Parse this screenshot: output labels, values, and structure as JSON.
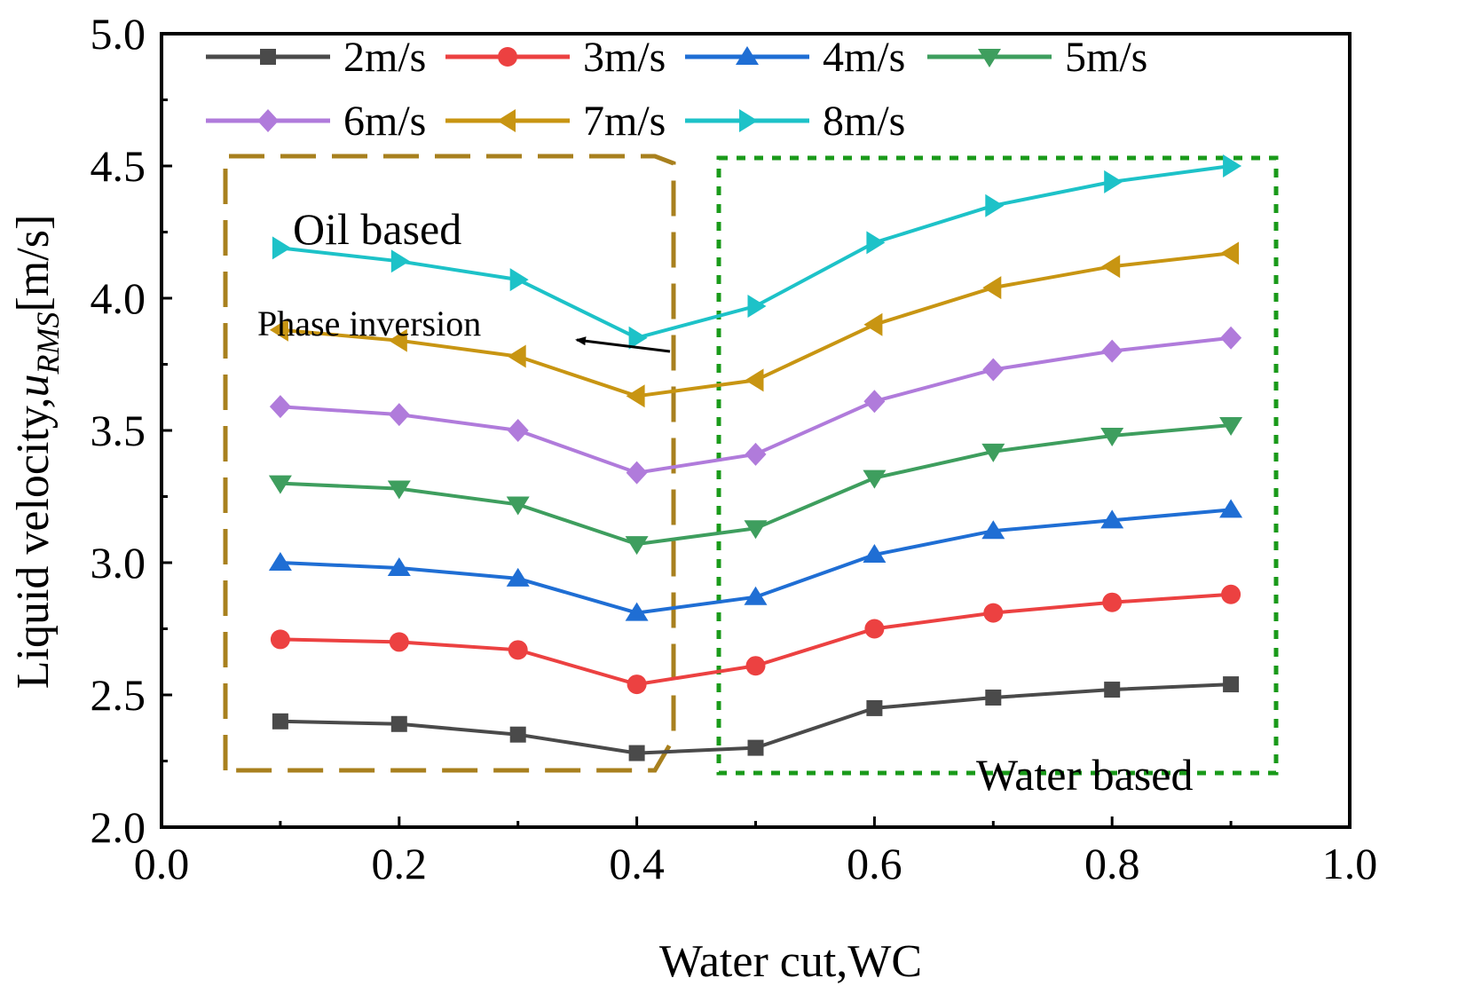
{
  "chart_data": {
    "type": "line",
    "title": "",
    "xlabel": "Water cut,WC",
    "ylabel_prefix": "Liquid velocity,",
    "ylabel_var": "u",
    "ylabel_sub": "RMS",
    "ylabel_unit": "[m/s]",
    "xlim": [
      0.0,
      1.0
    ],
    "ylim": [
      2.0,
      5.0
    ],
    "xticks": [
      "0.0",
      "0.2",
      "0.4",
      "0.6",
      "0.8",
      "1.0"
    ],
    "yticks": [
      "2.0",
      "2.5",
      "3.0",
      "3.5",
      "4.0",
      "4.5",
      "5.0"
    ],
    "grid": false,
    "legend_position": "top-left",
    "x": [
      0.1,
      0.2,
      0.3,
      0.4,
      0.5,
      0.6,
      0.7,
      0.8,
      0.9
    ],
    "series": [
      {
        "name": "2m/s",
        "color": "#4a4a4a",
        "marker": "square",
        "values": [
          2.4,
          2.39,
          2.35,
          2.28,
          2.3,
          2.45,
          2.49,
          2.52,
          2.54
        ]
      },
      {
        "name": "3m/s",
        "color": "#ec4141",
        "marker": "circle",
        "values": [
          2.71,
          2.7,
          2.67,
          2.54,
          2.61,
          2.75,
          2.81,
          2.85,
          2.88
        ]
      },
      {
        "name": "4m/s",
        "color": "#1f6ed4",
        "marker": "triangle-up",
        "values": [
          3.0,
          2.98,
          2.94,
          2.81,
          2.87,
          3.03,
          3.12,
          3.16,
          3.2
        ]
      },
      {
        "name": "5m/s",
        "color": "#3e9e5e",
        "marker": "triangle-down",
        "values": [
          3.3,
          3.28,
          3.22,
          3.07,
          3.13,
          3.32,
          3.42,
          3.48,
          3.52
        ]
      },
      {
        "name": "6m/s",
        "color": "#b07bdb",
        "marker": "diamond",
        "values": [
          3.59,
          3.56,
          3.5,
          3.34,
          3.41,
          3.61,
          3.73,
          3.8,
          3.85
        ]
      },
      {
        "name": "7m/s",
        "color": "#c89512",
        "marker": "triangle-left",
        "values": [
          3.88,
          3.84,
          3.78,
          3.63,
          3.69,
          3.9,
          4.04,
          4.12,
          4.17
        ]
      },
      {
        "name": "8m/s",
        "color": "#1dc2c8",
        "marker": "triangle-right",
        "values": [
          4.19,
          4.14,
          4.07,
          3.85,
          3.97,
          4.21,
          4.35,
          4.44,
          4.5
        ]
      }
    ],
    "annotations": {
      "oil_region": "Oil based",
      "water_region": "Water based",
      "inversion": "Phase inversion"
    },
    "region_colors": {
      "oil": "#a8801e",
      "water": "#1a9a1a"
    }
  }
}
